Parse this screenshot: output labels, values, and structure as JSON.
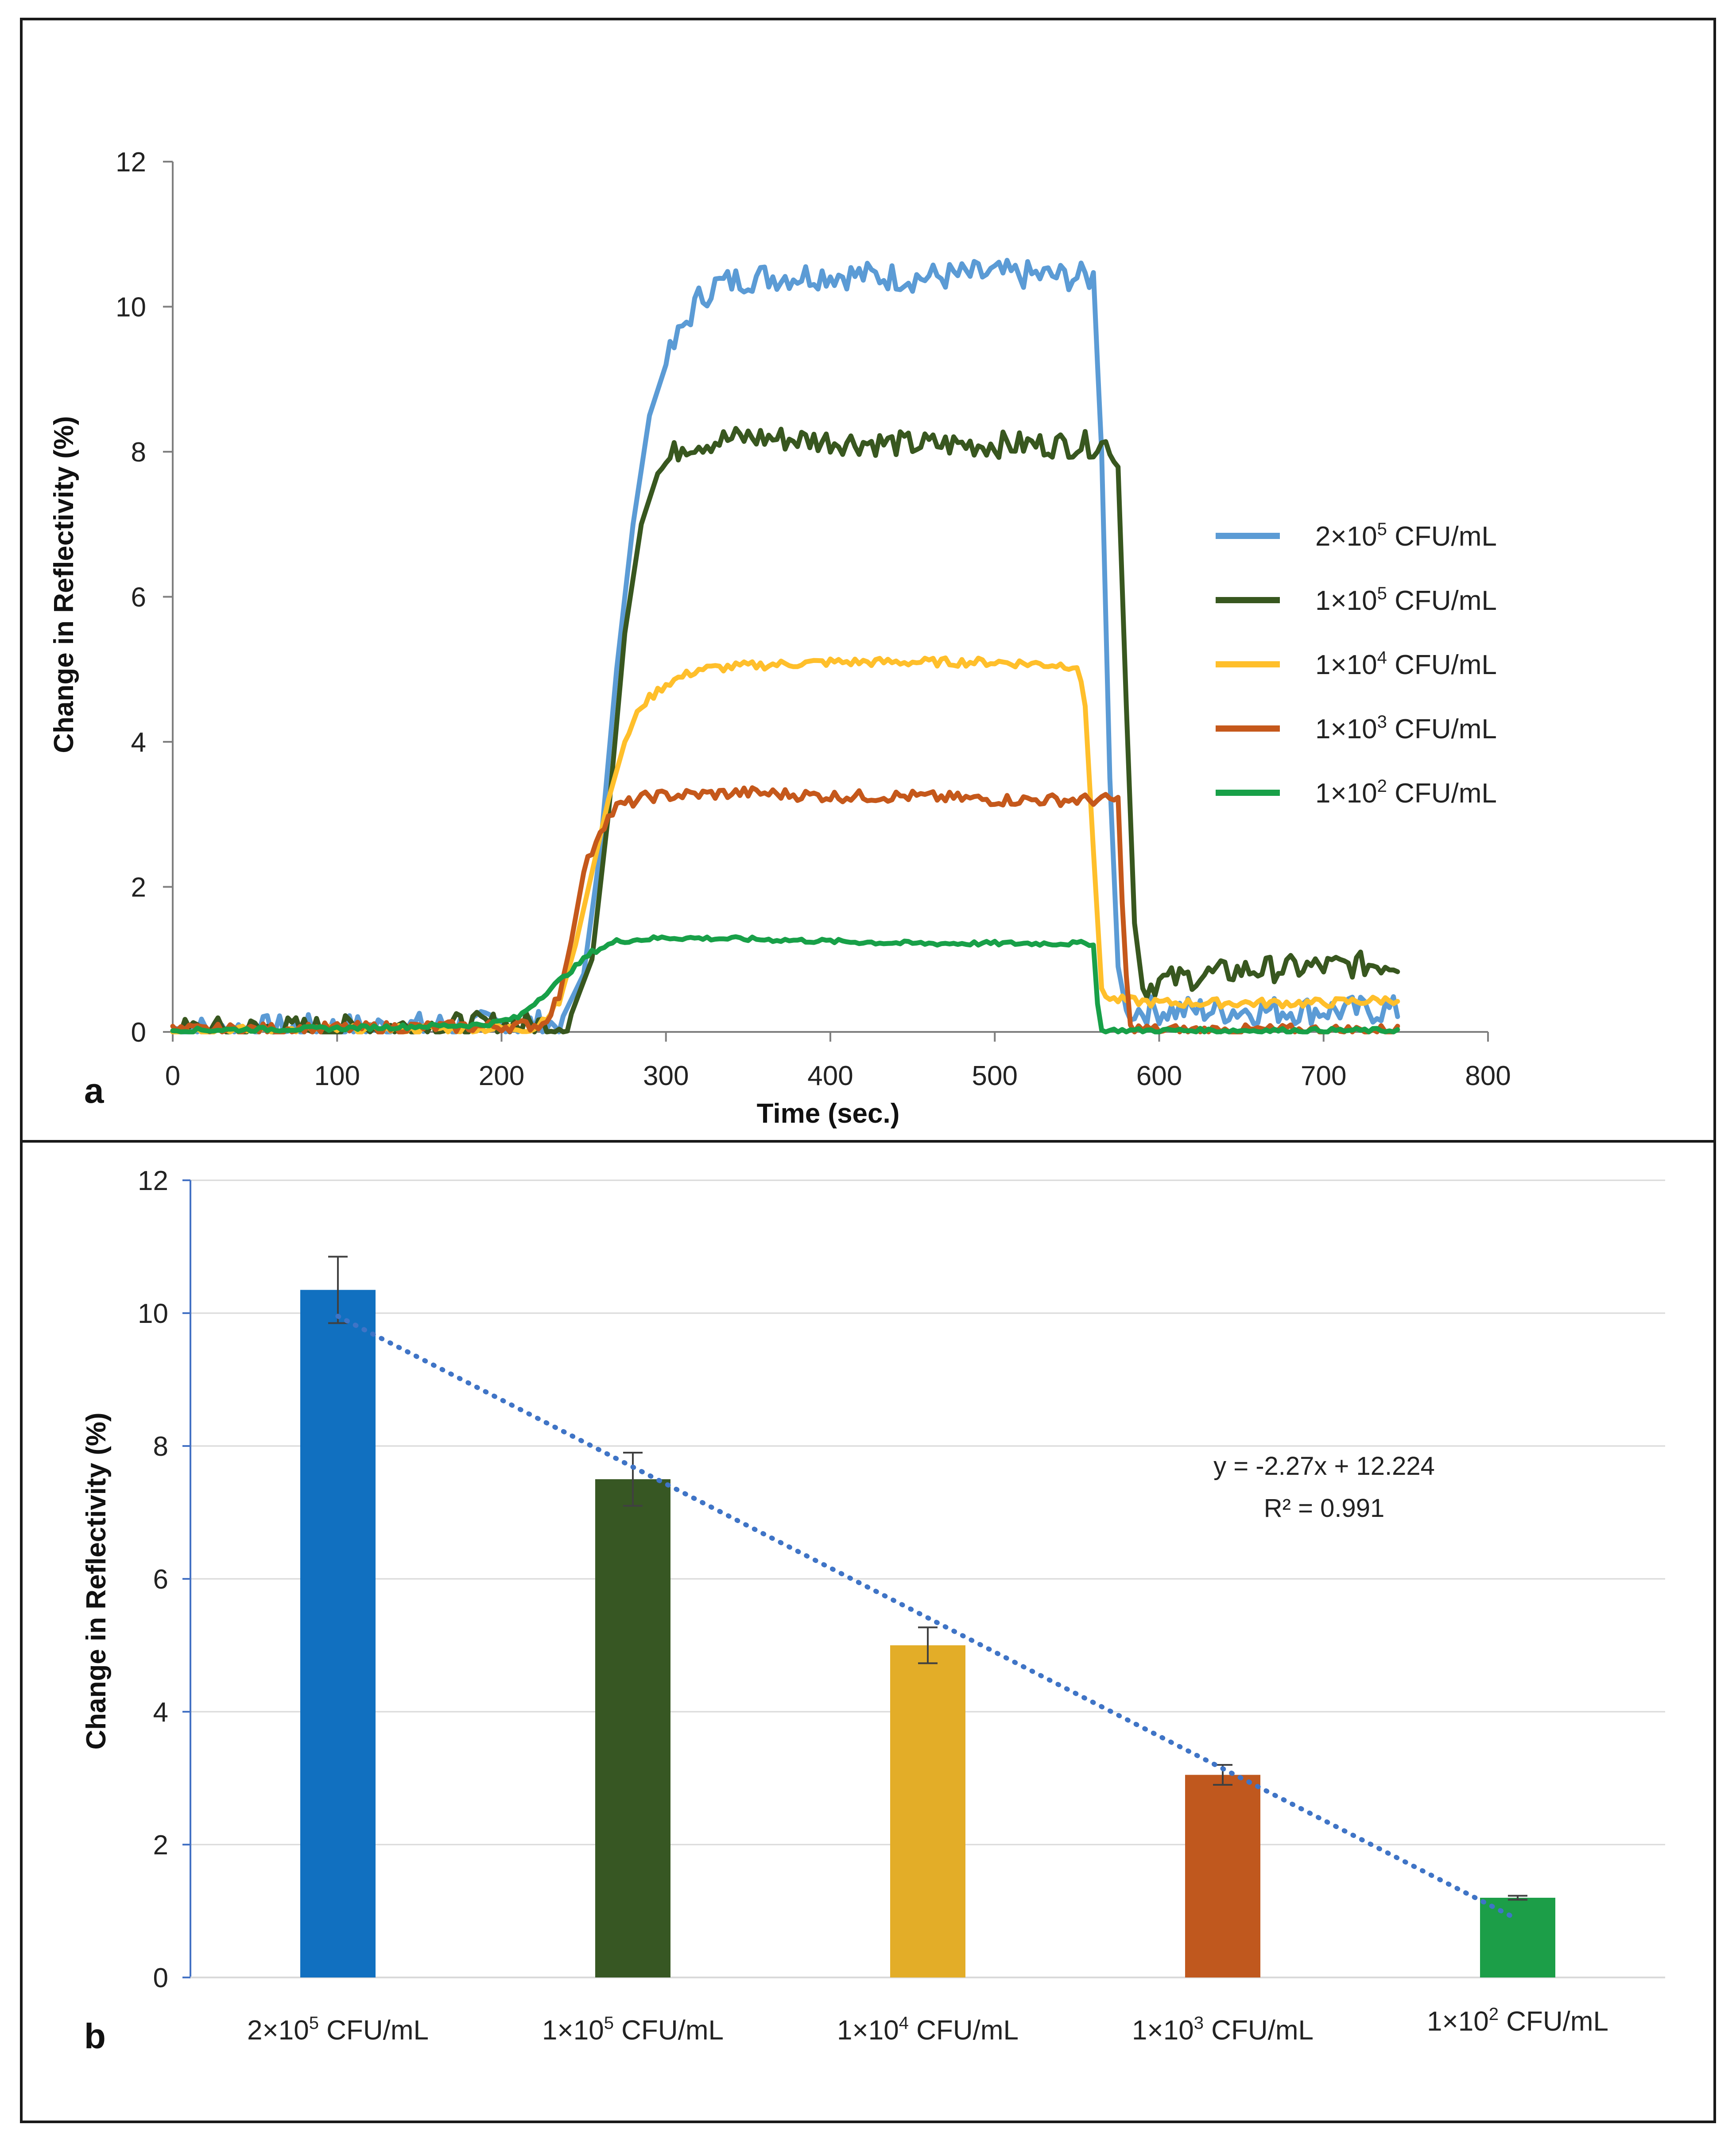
{
  "chart_data": [
    {
      "type": "line",
      "panel_label": "a",
      "xlabel": "Time (sec.)",
      "ylabel": "Change in Reflectivity (%)",
      "xlim": [
        0,
        800
      ],
      "ylim": [
        0,
        12
      ],
      "xticks": [
        "0",
        "100",
        "200",
        "300",
        "400",
        "500",
        "600",
        "700",
        "800"
      ],
      "yticks": [
        "0",
        "2",
        "4",
        "6",
        "8",
        "10",
        "12"
      ],
      "legend_position": "right",
      "series": [
        {
          "name_base": "2×10",
          "name_exp": "5",
          "name_unit": " CFU/mL",
          "color": "#5b9bd5",
          "points": [
            [
              0,
              0.02
            ],
            [
              100,
              0.05
            ],
            [
              200,
              0.1
            ],
            [
              235,
              0.1
            ],
            [
              250,
              0.8
            ],
            [
              260,
              2.5
            ],
            [
              270,
              5.0
            ],
            [
              280,
              7.0
            ],
            [
              290,
              8.5
            ],
            [
              300,
              9.2
            ],
            [
              310,
              9.7
            ],
            [
              320,
              10.1
            ],
            [
              330,
              10.3
            ],
            [
              350,
              10.4
            ],
            [
              400,
              10.45
            ],
            [
              450,
              10.4
            ],
            [
              500,
              10.45
            ],
            [
              560,
              10.4
            ],
            [
              565,
              8.0
            ],
            [
              570,
              3.5
            ],
            [
              575,
              0.9
            ],
            [
              580,
              0.3
            ],
            [
              600,
              0.3
            ],
            [
              650,
              0.3
            ],
            [
              700,
              0.3
            ],
            [
              745,
              0.3
            ]
          ],
          "noise": 0.2
        },
        {
          "name_base": "1×10",
          "name_exp": "5",
          "name_unit": " CFU/mL",
          "color": "#38571f",
          "points": [
            [
              0,
              0.02
            ],
            [
              100,
              0.05
            ],
            [
              200,
              0.1
            ],
            [
              240,
              0.1
            ],
            [
              255,
              1.0
            ],
            [
              265,
              3.0
            ],
            [
              275,
              5.5
            ],
            [
              285,
              7.0
            ],
            [
              295,
              7.7
            ],
            [
              310,
              8.1
            ],
            [
              350,
              8.2
            ],
            [
              400,
              8.15
            ],
            [
              450,
              8.1
            ],
            [
              500,
              8.1
            ],
            [
              570,
              8.1
            ],
            [
              575,
              7.8
            ],
            [
              580,
              4.5
            ],
            [
              585,
              1.5
            ],
            [
              590,
              0.6
            ],
            [
              600,
              0.7
            ],
            [
              650,
              0.85
            ],
            [
              700,
              0.9
            ],
            [
              745,
              0.95
            ]
          ],
          "noise": 0.18
        },
        {
          "name_base": "1×10",
          "name_exp": "4",
          "name_unit": " CFU/mL",
          "color": "#ffbf2b",
          "points": [
            [
              0,
              0.02
            ],
            [
              100,
              0.03
            ],
            [
              200,
              0.05
            ],
            [
              220,
              0.05
            ],
            [
              235,
              0.4
            ],
            [
              245,
              1.2
            ],
            [
              255,
              2.2
            ],
            [
              265,
              3.2
            ],
            [
              275,
              4.0
            ],
            [
              285,
              4.5
            ],
            [
              300,
              4.8
            ],
            [
              320,
              5.0
            ],
            [
              350,
              5.05
            ],
            [
              400,
              5.1
            ],
            [
              450,
              5.1
            ],
            [
              500,
              5.1
            ],
            [
              550,
              5.05
            ],
            [
              555,
              4.5
            ],
            [
              560,
              2.5
            ],
            [
              565,
              0.6
            ],
            [
              570,
              0.45
            ],
            [
              600,
              0.4
            ],
            [
              650,
              0.4
            ],
            [
              700,
              0.4
            ],
            [
              745,
              0.45
            ]
          ],
          "noise": 0.06
        },
        {
          "name_base": "1×10",
          "name_exp": "3",
          "name_unit": " CFU/mL",
          "color": "#c5581b",
          "points": [
            [
              0,
              0.02
            ],
            [
              100,
              0.05
            ],
            [
              200,
              0.08
            ],
            [
              225,
              0.1
            ],
            [
              235,
              0.5
            ],
            [
              242,
              1.2
            ],
            [
              250,
              2.2
            ],
            [
              260,
              2.8
            ],
            [
              270,
              3.1
            ],
            [
              290,
              3.25
            ],
            [
              350,
              3.3
            ],
            [
              400,
              3.25
            ],
            [
              450,
              3.25
            ],
            [
              500,
              3.2
            ],
            [
              575,
              3.2
            ],
            [
              578,
              1.5
            ],
            [
              582,
              0.05
            ],
            [
              600,
              0.02
            ],
            [
              650,
              0.02
            ],
            [
              700,
              0.02
            ],
            [
              745,
              0.02
            ]
          ],
          "noise": 0.08
        },
        {
          "name_base": "1×10",
          "name_exp": "2",
          "name_unit": " CFU/mL",
          "color": "#18a048",
          "points": [
            [
              0,
              0.02
            ],
            [
              100,
              0.05
            ],
            [
              190,
              0.1
            ],
            [
              210,
              0.2
            ],
            [
              225,
              0.5
            ],
            [
              240,
              0.8
            ],
            [
              255,
              1.1
            ],
            [
              270,
              1.25
            ],
            [
              300,
              1.3
            ],
            [
              350,
              1.28
            ],
            [
              400,
              1.25
            ],
            [
              450,
              1.22
            ],
            [
              500,
              1.22
            ],
            [
              560,
              1.22
            ],
            [
              562,
              0.5
            ],
            [
              564,
              0.02
            ],
            [
              600,
              0.02
            ],
            [
              650,
              0.02
            ],
            [
              700,
              0.02
            ],
            [
              745,
              0.02
            ]
          ],
          "noise": 0.03
        }
      ]
    },
    {
      "type": "bar",
      "panel_label": "b",
      "ylabel": "Change in Reflectivity (%)",
      "ylim": [
        0,
        12
      ],
      "yticks": [
        "0",
        "2",
        "4",
        "6",
        "8",
        "10",
        "12"
      ],
      "categories": [
        {
          "base": "2×10",
          "exp": "5",
          "unit": " CFU/mL"
        },
        {
          "base": "1×10",
          "exp": "5",
          "unit": " CFU/mL"
        },
        {
          "base": "1×10",
          "exp": "4",
          "unit": " CFU/mL"
        },
        {
          "base": "1×10",
          "exp": "3",
          "unit": " CFU/mL"
        },
        {
          "base": "1×10",
          "exp": "2",
          "unit": " CFU/mL"
        }
      ],
      "values": [
        10.35,
        7.5,
        5.0,
        3.05,
        1.2
      ],
      "errors": [
        0.5,
        0.4,
        0.27,
        0.15,
        0.03
      ],
      "colors": [
        "#1170c0",
        "#375723",
        "#e3ad28",
        "#c0581e",
        "#1c9e48"
      ],
      "trendline": {
        "slope": -2.27,
        "intercept": 12.224,
        "color": "#3f74c6",
        "style": "dotted"
      },
      "equation": "y = -2.27x + 12.224",
      "r_squared": "R² = 0.991",
      "gridlines": true
    }
  ]
}
